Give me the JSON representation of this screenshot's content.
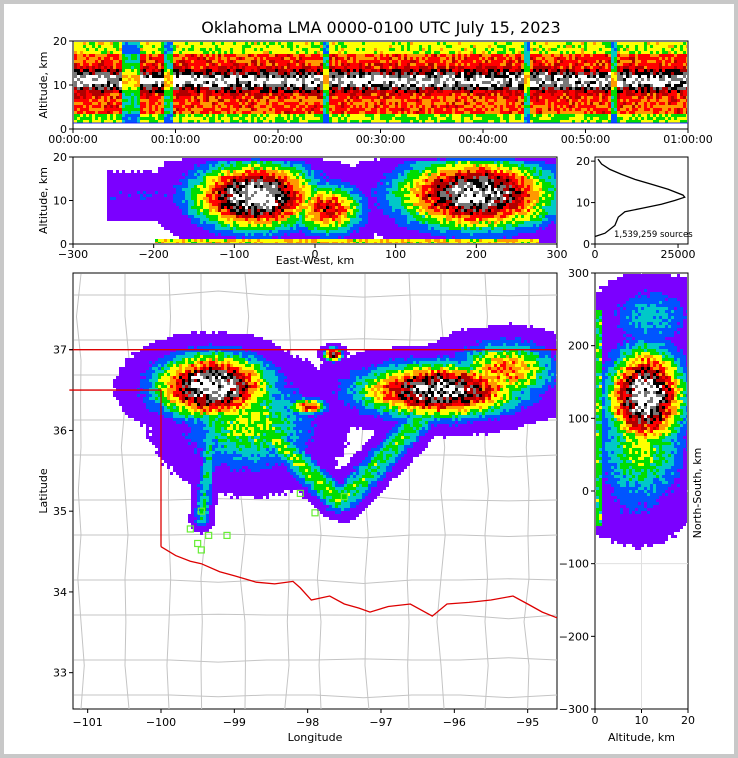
{
  "chart_data": {
    "title": "Oklahoma LMA 0000-0100 UTC July 15, 2023",
    "colors": {
      "density_scale": [
        "#ffffff",
        "#7b00ff",
        "#0055ff",
        "#00c8c8",
        "#00dd00",
        "#ffff00",
        "#ff9900",
        "#ff0000",
        "#b00000",
        "#000000",
        "#777777",
        "#ffffff"
      ],
      "state_border": "#dd0000",
      "county_lines": "#c4c4c4",
      "stations": "#66ee33"
    },
    "panels": [
      {
        "id": "time_altitude",
        "type": "heatmap",
        "ylabel": "Altitude, km",
        "ylim": [
          0,
          20
        ],
        "y_ticks": [
          "0",
          "10",
          "20"
        ],
        "xlim": [
          0,
          60
        ],
        "x_ticks": [
          "00:00:00",
          "00:10:00",
          "00:20:00",
          "00:30:00",
          "00:40:00",
          "00:50:00",
          "01:00:00"
        ],
        "core_altitude_km": [
          9,
          13
        ]
      },
      {
        "id": "eastwest_altitude",
        "type": "heatmap",
        "xlabel": "East-West, km",
        "ylabel": "Altitude, km",
        "xlim": [
          -300,
          300
        ],
        "x_ticks": [
          "−300",
          "−200",
          "−100",
          "0",
          "100",
          "200",
          "300"
        ],
        "ylim": [
          0,
          20
        ],
        "y_ticks": [
          "0",
          "10",
          "20"
        ]
      },
      {
        "id": "altitude_histogram",
        "type": "line",
        "xlim": [
          0,
          28000
        ],
        "x_ticks": [
          "0",
          "25000"
        ],
        "ylim": [
          0,
          21
        ],
        "y_ticks": [
          "0",
          "10",
          "20"
        ],
        "annotation": "1,539,259 sources",
        "points": [
          [
            0,
            1.8
          ],
          [
            3000,
            2.6
          ],
          [
            6000,
            4.5
          ],
          [
            7000,
            6.5
          ],
          [
            9000,
            7.8
          ],
          [
            14000,
            8.6
          ],
          [
            20000,
            9.6
          ],
          [
            24000,
            10.5
          ],
          [
            27000,
            11.3
          ],
          [
            26500,
            11.8
          ],
          [
            22000,
            13.2
          ],
          [
            17000,
            14.4
          ],
          [
            12000,
            15.6
          ],
          [
            8000,
            16.8
          ],
          [
            4500,
            18.0
          ],
          [
            2000,
            19.3
          ],
          [
            900,
            20.5
          ]
        ]
      },
      {
        "id": "plan_view",
        "type": "heatmap",
        "xlabel": "Longitude",
        "ylabel": "Latitude",
        "xlim": [
          -101.2,
          -94.6
        ],
        "x_ticks": [
          "−101",
          "−100",
          "−99",
          "−98",
          "−97",
          "−96",
          "−95"
        ],
        "ylim": [
          32.55,
          37.95
        ],
        "y_ticks": [
          "33",
          "34",
          "35",
          "36",
          "37"
        ]
      },
      {
        "id": "altitude_northsouth",
        "type": "heatmap",
        "xlabel": "Altitude, km",
        "ylabel": "North-South, km",
        "xlim": [
          0,
          20
        ],
        "x_ticks": [
          "0",
          "10",
          "20"
        ],
        "ylim": [
          -300,
          300
        ],
        "y_ticks": [
          "−300",
          "−200",
          "−100",
          "0",
          "100",
          "200",
          "300"
        ]
      }
    ]
  }
}
